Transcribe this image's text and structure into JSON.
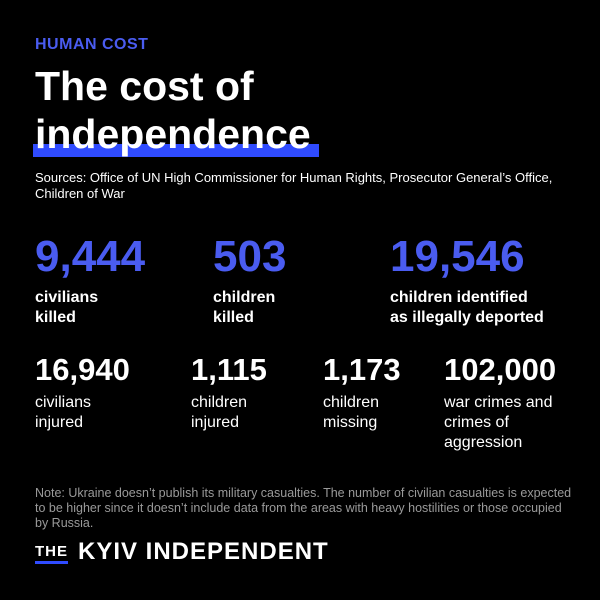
{
  "kicker": "HUMAN COST",
  "title": {
    "line1": "The cost of",
    "line2": "independence"
  },
  "sources": "Sources: Office of UN High Commissioner for Human Rights, Prosecutor General’s Office, Children of War",
  "stats_primary": [
    {
      "number": "9,444",
      "label_line1": "civilians",
      "label_line2": "killed"
    },
    {
      "number": "503",
      "label_line1": "children",
      "label_line2": "killed"
    },
    {
      "number": "19,546",
      "label_line1": "children identified",
      "label_line2": "as illegally deported"
    }
  ],
  "stats_secondary": [
    {
      "number": "16,940",
      "label_line1": "civilians",
      "label_line2": "injured"
    },
    {
      "number": "1,115",
      "label_line1": "children",
      "label_line2": "injured"
    },
    {
      "number": "1,173",
      "label_line1": "children",
      "label_line2": "missing"
    },
    {
      "number": "102,000",
      "label_line1": "war crimes and",
      "label_line2": "crimes of",
      "label_line3": "aggression"
    }
  ],
  "note": "Note: Ukraine doesn’t publish its military casualties. The number of civilian casualties is expected to be higher since it doesn’t include data from the areas with heavy hostilities or those occupied by Russia.",
  "brand": {
    "prefix": "THE",
    "name": "KYIV INDEPENDENT"
  },
  "colors": {
    "background": "#000000",
    "accent_blue": "#4a5cf0",
    "highlight_blue": "#2f4bff",
    "note_gray": "#9a9a9a"
  }
}
